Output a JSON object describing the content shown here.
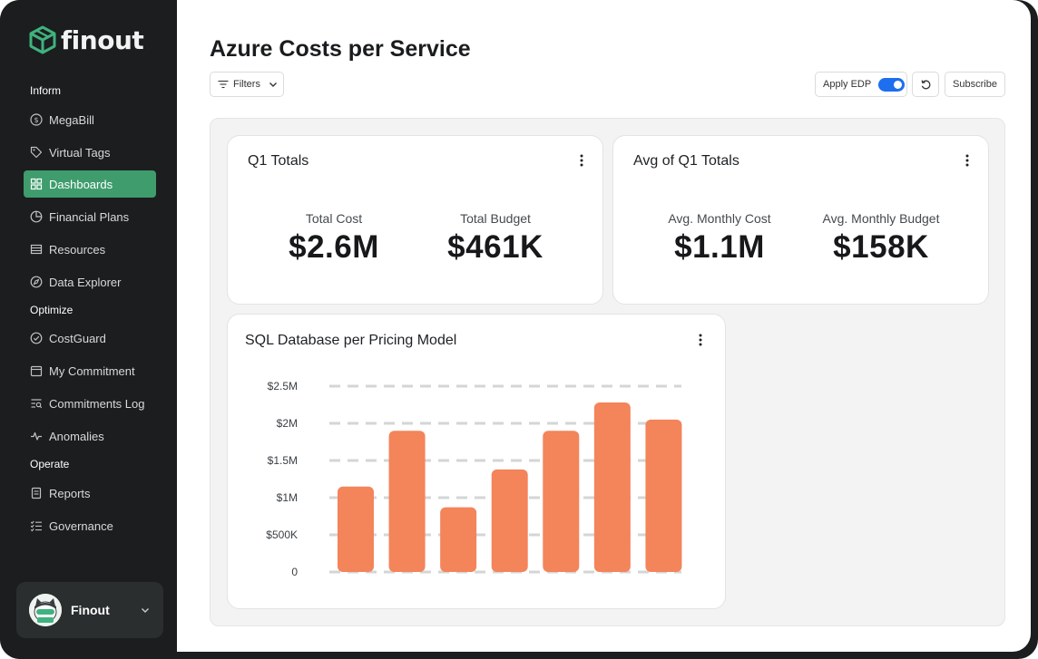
{
  "brand": {
    "name": "finout",
    "accent": "#3f9c6d"
  },
  "sidebar": {
    "sections": [
      {
        "label": "Inform"
      },
      {
        "label": "Optimize"
      },
      {
        "label": "Operate"
      }
    ],
    "items": [
      {
        "label": "MegaBill",
        "icon": "dollar-circle-icon"
      },
      {
        "label": "Virtual Tags",
        "icon": "tag-icon"
      },
      {
        "label": "Dashboards",
        "icon": "grid-icon",
        "active": true
      },
      {
        "label": "Financial Plans",
        "icon": "pie-icon"
      },
      {
        "label": "Resources",
        "icon": "table-icon"
      },
      {
        "label": "Data Explorer",
        "icon": "compass-icon"
      },
      {
        "label": "CostGuard",
        "icon": "shield-check-icon"
      },
      {
        "label": "My Commitment",
        "icon": "calendar-icon"
      },
      {
        "label": "Commitments Log",
        "icon": "list-search-icon"
      },
      {
        "label": "Anomalies",
        "icon": "pulse-icon"
      },
      {
        "label": "Reports",
        "icon": "document-icon"
      },
      {
        "label": "Governance",
        "icon": "checklist-icon"
      }
    ],
    "user": {
      "name": "Finout"
    }
  },
  "header": {
    "title": "Azure Costs per Service",
    "filters_label": "Filters",
    "edp_label": "Apply EDP",
    "edp_enabled": true,
    "subscribe_label": "Subscribe"
  },
  "cards": {
    "q1_totals": {
      "title": "Q1 Totals",
      "metrics": [
        {
          "label": "Total Cost",
          "value": "$2.6M"
        },
        {
          "label": "Total Budget",
          "value": "$461K"
        }
      ]
    },
    "avg_q1": {
      "title": "Avg of Q1 Totals",
      "metrics": [
        {
          "label": "Avg. Monthly Cost",
          "value": "$1.1M"
        },
        {
          "label": "Avg. Monthly Budget",
          "value": "$158K"
        }
      ]
    },
    "sql_chart": {
      "title": "SQL Database per Pricing Model"
    }
  },
  "chart_data": {
    "type": "bar",
    "title": "SQL Database per Pricing Model",
    "xlabel": "",
    "ylabel": "",
    "ylim": [
      0,
      2500000
    ],
    "y_ticks": [
      {
        "value": 0,
        "label": "0"
      },
      {
        "value": 500000,
        "label": "$500K"
      },
      {
        "value": 1000000,
        "label": "$1M"
      },
      {
        "value": 1500000,
        "label": "$1.5M"
      },
      {
        "value": 2000000,
        "label": "$2M"
      },
      {
        "value": 2500000,
        "label": "$2.5M"
      }
    ],
    "categories": [
      "",
      "",
      "",
      "",
      "",
      "",
      ""
    ],
    "values": [
      1150000,
      1900000,
      870000,
      1380000,
      1900000,
      2280000,
      2050000
    ],
    "bar_color": "#f4845a",
    "grid": true
  }
}
